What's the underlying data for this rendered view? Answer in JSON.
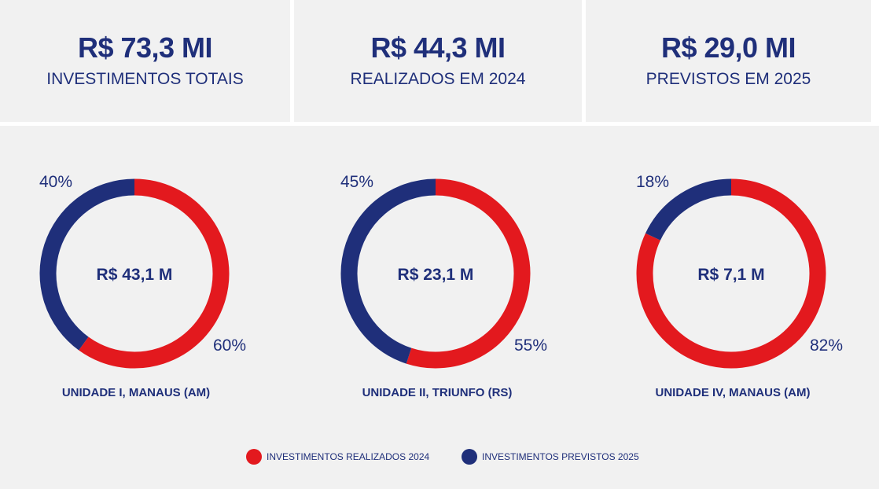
{
  "kpis": [
    {
      "value": "R$ 73,3 MI",
      "label": "INVESTIMENTOS TOTAIS"
    },
    {
      "value": "R$ 44,3 MI",
      "label": "REALIZADOS EM 2024"
    },
    {
      "value": "R$ 29,0 MI",
      "label": "PREVISTOS EM 2025"
    }
  ],
  "colors": {
    "realizados": "#e3191e",
    "previstos": "#1f2f7a",
    "text": "#1f2f7a"
  },
  "chart_data": {
    "type": "pie",
    "donut": true,
    "series_names": [
      "INVESTIMENTOS REALIZADOS 2024",
      "INVESTIMENTOS PREVISTOS 2025"
    ],
    "charts": [
      {
        "center_label": "R$ 43,1 M",
        "unit_label": "UNIDADE I, MANAUS (AM)",
        "values": [
          60,
          40
        ],
        "labels": [
          "60%",
          "40%"
        ]
      },
      {
        "center_label": "R$ 23,1 M",
        "unit_label": "UNIDADE II, TRIUNFO (RS)",
        "values": [
          55,
          45
        ],
        "labels": [
          "55%",
          "45%"
        ]
      },
      {
        "center_label": "R$ 7,1 M",
        "unit_label": "UNIDADE IV, MANAUS (AM)",
        "values": [
          82,
          18
        ],
        "labels": [
          "82%",
          "18%"
        ]
      }
    ]
  },
  "legend": [
    {
      "label": "INVESTIMENTOS REALIZADOS 2024",
      "color": "#e3191e"
    },
    {
      "label": "INVESTIMENTOS PREVISTOS 2025",
      "color": "#1f2f7a"
    }
  ]
}
